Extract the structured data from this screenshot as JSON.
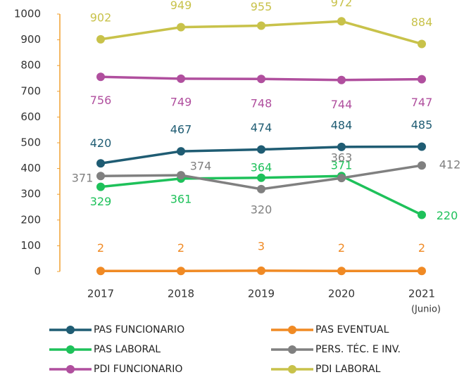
{
  "chart_data": {
    "type": "line",
    "categories": [
      "2017",
      "2018",
      "2019",
      "2020",
      "2021"
    ],
    "category_note": "(Junio)",
    "ylim": [
      0,
      1000
    ],
    "yticks": [
      0,
      100,
      200,
      300,
      400,
      500,
      600,
      700,
      800,
      900,
      1000
    ],
    "axis_color": "#f0a030",
    "grid": false,
    "series": [
      {
        "name": "PAS FUNCIONARIO",
        "color": "#1f5c73",
        "values": [
          420,
          467,
          474,
          484,
          485
        ]
      },
      {
        "name": "PAS EVENTUAL",
        "color": "#f08a24",
        "values": [
          2,
          2,
          3,
          2,
          2
        ]
      },
      {
        "name": "PAS LABORAL",
        "color": "#1ec15a",
        "values": [
          329,
          361,
          364,
          371,
          220
        ]
      },
      {
        "name": "PERS. TÉC. E INV.",
        "color": "#808080",
        "values": [
          371,
          374,
          320,
          363,
          412
        ]
      },
      {
        "name": "PDI FUNCIONARIO",
        "color": "#b04f9e",
        "values": [
          756,
          749,
          748,
          744,
          747
        ]
      },
      {
        "name": "PDI LABORAL",
        "color": "#c8c24a",
        "values": [
          902,
          949,
          955,
          972,
          884
        ]
      }
    ]
  }
}
